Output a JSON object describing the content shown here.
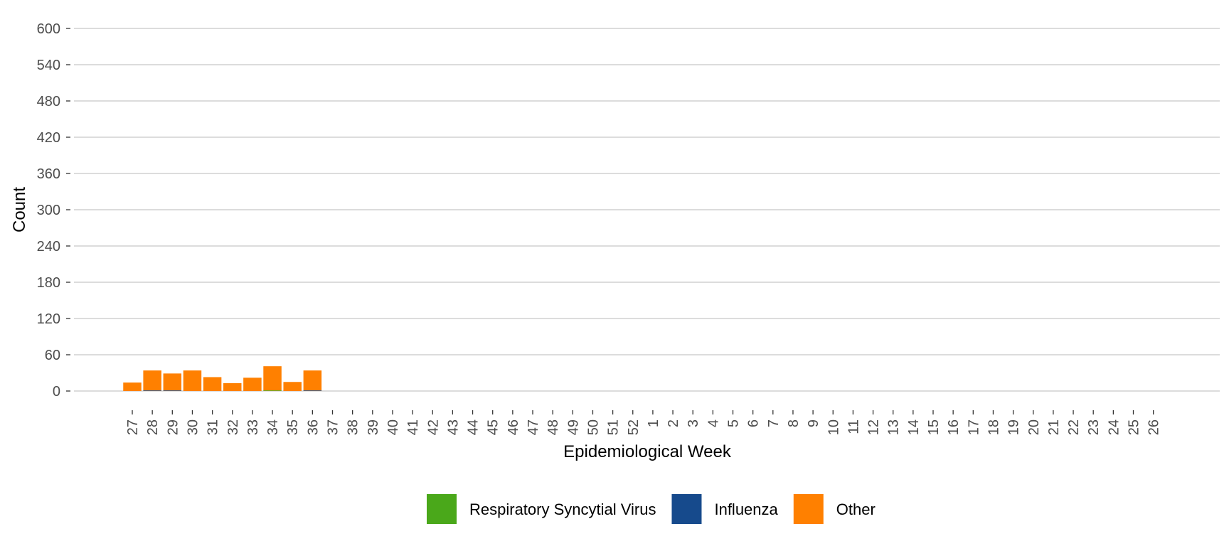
{
  "chart_data": {
    "type": "bar",
    "stacked": true,
    "xlabel": "Epidemiological Week",
    "ylabel": "Count",
    "ylim": [
      0,
      600
    ],
    "yticks": [
      0,
      60,
      120,
      180,
      240,
      300,
      360,
      420,
      480,
      540,
      600
    ],
    "grid": "horizontal",
    "legend_position": "bottom",
    "categories": [
      "27",
      "28",
      "29",
      "30",
      "31",
      "32",
      "33",
      "34",
      "35",
      "36",
      "37",
      "38",
      "39",
      "40",
      "41",
      "42",
      "43",
      "44",
      "45",
      "46",
      "47",
      "48",
      "49",
      "50",
      "51",
      "52",
      "1",
      "2",
      "3",
      "4",
      "5",
      "6",
      "7",
      "8",
      "9",
      "10",
      "11",
      "12",
      "13",
      "14",
      "15",
      "16",
      "17",
      "18",
      "19",
      "20",
      "21",
      "22",
      "23",
      "24",
      "25",
      "26"
    ],
    "series": [
      {
        "name": "Respiratory Syncytial Virus",
        "color": "#4aa81a",
        "values": [
          0,
          0,
          0,
          0,
          0,
          0,
          0,
          1,
          0,
          0,
          null,
          null,
          null,
          null,
          null,
          null,
          null,
          null,
          null,
          null,
          null,
          null,
          null,
          null,
          null,
          null,
          null,
          null,
          null,
          null,
          null,
          null,
          null,
          null,
          null,
          null,
          null,
          null,
          null,
          null,
          null,
          null,
          null,
          null,
          null,
          null,
          null,
          null,
          null,
          null,
          null,
          null
        ]
      },
      {
        "name": "Influenza",
        "color": "#164a8c",
        "values": [
          0,
          1,
          1,
          0,
          0,
          0,
          0,
          0,
          0,
          1,
          null,
          null,
          null,
          null,
          null,
          null,
          null,
          null,
          null,
          null,
          null,
          null,
          null,
          null,
          null,
          null,
          null,
          null,
          null,
          null,
          null,
          null,
          null,
          null,
          null,
          null,
          null,
          null,
          null,
          null,
          null,
          null,
          null,
          null,
          null,
          null,
          null,
          null,
          null,
          null,
          null,
          null
        ]
      },
      {
        "name": "Other",
        "color": "#ff8000",
        "values": [
          14,
          33,
          28,
          34,
          23,
          13,
          22,
          40,
          15,
          33,
          null,
          null,
          null,
          null,
          null,
          null,
          null,
          null,
          null,
          null,
          null,
          null,
          null,
          null,
          null,
          null,
          null,
          null,
          null,
          null,
          null,
          null,
          null,
          null,
          null,
          null,
          null,
          null,
          null,
          null,
          null,
          null,
          null,
          null,
          null,
          null,
          null,
          null,
          null,
          null,
          null,
          null
        ]
      }
    ]
  }
}
